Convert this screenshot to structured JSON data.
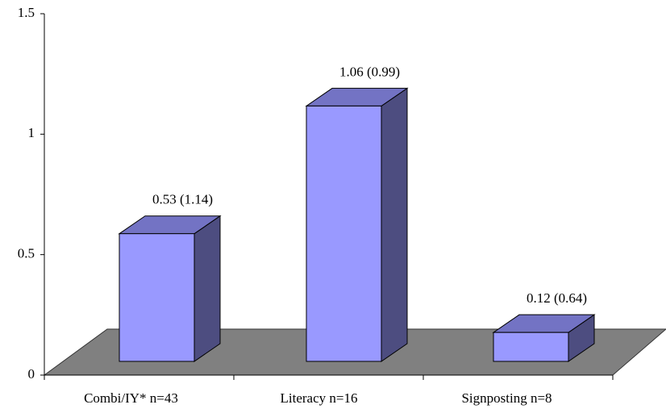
{
  "chart_data": {
    "type": "bar3d",
    "categories": [
      "Combi/IY* n=43",
      "Literacy n=16",
      "Signposting n=8"
    ],
    "values": [
      0.53,
      1.06,
      0.12
    ],
    "value_labels": [
      "0.53 (1.14)",
      "1.06 (0.99)",
      "0.12 (0.64)"
    ],
    "color": "#9999ff",
    "ylim": [
      0,
      1.5
    ],
    "yticks": [
      0,
      0.5,
      1,
      1.5
    ]
  }
}
